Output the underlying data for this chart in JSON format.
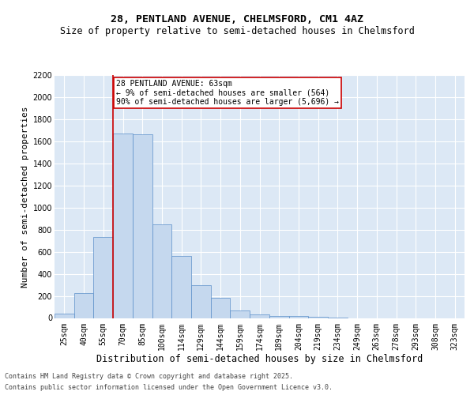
{
  "title_line1": "28, PENTLAND AVENUE, CHELMSFORD, CM1 4AZ",
  "title_line2": "Size of property relative to semi-detached houses in Chelmsford",
  "xlabel": "Distribution of semi-detached houses by size in Chelmsford",
  "ylabel": "Number of semi-detached properties",
  "categories": [
    "25sqm",
    "40sqm",
    "55sqm",
    "70sqm",
    "85sqm",
    "100sqm",
    "114sqm",
    "129sqm",
    "144sqm",
    "159sqm",
    "174sqm",
    "189sqm",
    "204sqm",
    "219sqm",
    "234sqm",
    "249sqm",
    "263sqm",
    "278sqm",
    "293sqm",
    "308sqm",
    "323sqm"
  ],
  "values": [
    40,
    225,
    730,
    1670,
    1660,
    850,
    565,
    300,
    185,
    65,
    35,
    20,
    15,
    8,
    2,
    0,
    0,
    0,
    0,
    0,
    0
  ],
  "bar_color": "#c5d8ee",
  "bar_edge_color": "#5b8fc9",
  "bar_width": 1.0,
  "vline_x": 2.5,
  "vline_color": "#cc0000",
  "annotation_text": "28 PENTLAND AVENUE: 63sqm\n← 9% of semi-detached houses are smaller (564)\n90% of semi-detached houses are larger (5,696) →",
  "annotation_box_color": "#ffffff",
  "annotation_box_edge_color": "#cc0000",
  "ylim": [
    0,
    2200
  ],
  "yticks": [
    0,
    200,
    400,
    600,
    800,
    1000,
    1200,
    1400,
    1600,
    1800,
    2000,
    2200
  ],
  "background_color": "#dce8f5",
  "grid_color": "#ffffff",
  "footer_line1": "Contains HM Land Registry data © Crown copyright and database right 2025.",
  "footer_line2": "Contains public sector information licensed under the Open Government Licence v3.0.",
  "title_fontsize": 9.5,
  "subtitle_fontsize": 8.5,
  "axis_label_fontsize": 8,
  "tick_fontsize": 7,
  "annotation_fontsize": 7,
  "footer_fontsize": 6
}
